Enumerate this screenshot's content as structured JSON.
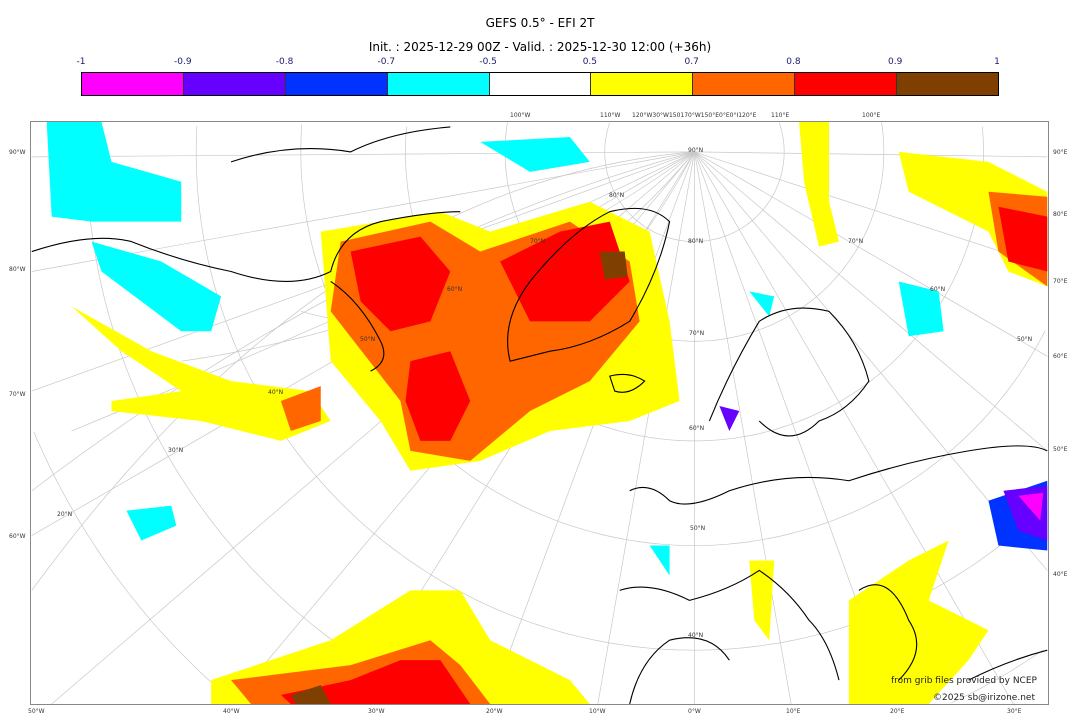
{
  "header": {
    "title": "GEFS 0.5° - EFI 2T",
    "subtitle": "Init. : 2025-12-29 00Z - Valid. : 2025-12-30 12:00 (+36h)"
  },
  "colorbar": {
    "ticks": [
      "-1",
      "-0.9",
      "-0.8",
      "-0.7",
      "-0.5",
      "0.5",
      "0.7",
      "0.8",
      "0.9",
      "1"
    ],
    "colors": [
      "#ff00ff",
      "#6600ff",
      "#0033ff",
      "#00ffff",
      "#ffffff",
      "#ffff00",
      "#ff6600",
      "#ff0000",
      "#7f3f00"
    ]
  },
  "axes": {
    "top": [
      "100°W",
      "110°W",
      "120°W30°W150170°W150°E0°E0°I120°E",
      "110°E",
      "100°E"
    ],
    "left": [
      "90°W",
      "80°W",
      "70°W",
      "60°W"
    ],
    "right": [
      "90°E",
      "80°E",
      "70°E",
      "60°E",
      "50°E",
      "40°E"
    ],
    "bottom": [
      "50°W",
      "40°W",
      "30°W",
      "20°W",
      "10°W",
      "0°W",
      "10°E",
      "20°E",
      "30°E"
    ],
    "inner": [
      "20°N",
      "30°N",
      "40°N",
      "50°N",
      "60°N",
      "70°N",
      "80°N",
      "90°N",
      "80°N",
      "70°N",
      "60°N",
      "50°N",
      "40°N",
      "70°N",
      "60°N",
      "50°N"
    ]
  },
  "credits": {
    "line1": "from grib files provided by NCEP",
    "line2": "©2025 sb@irizone.net"
  }
}
